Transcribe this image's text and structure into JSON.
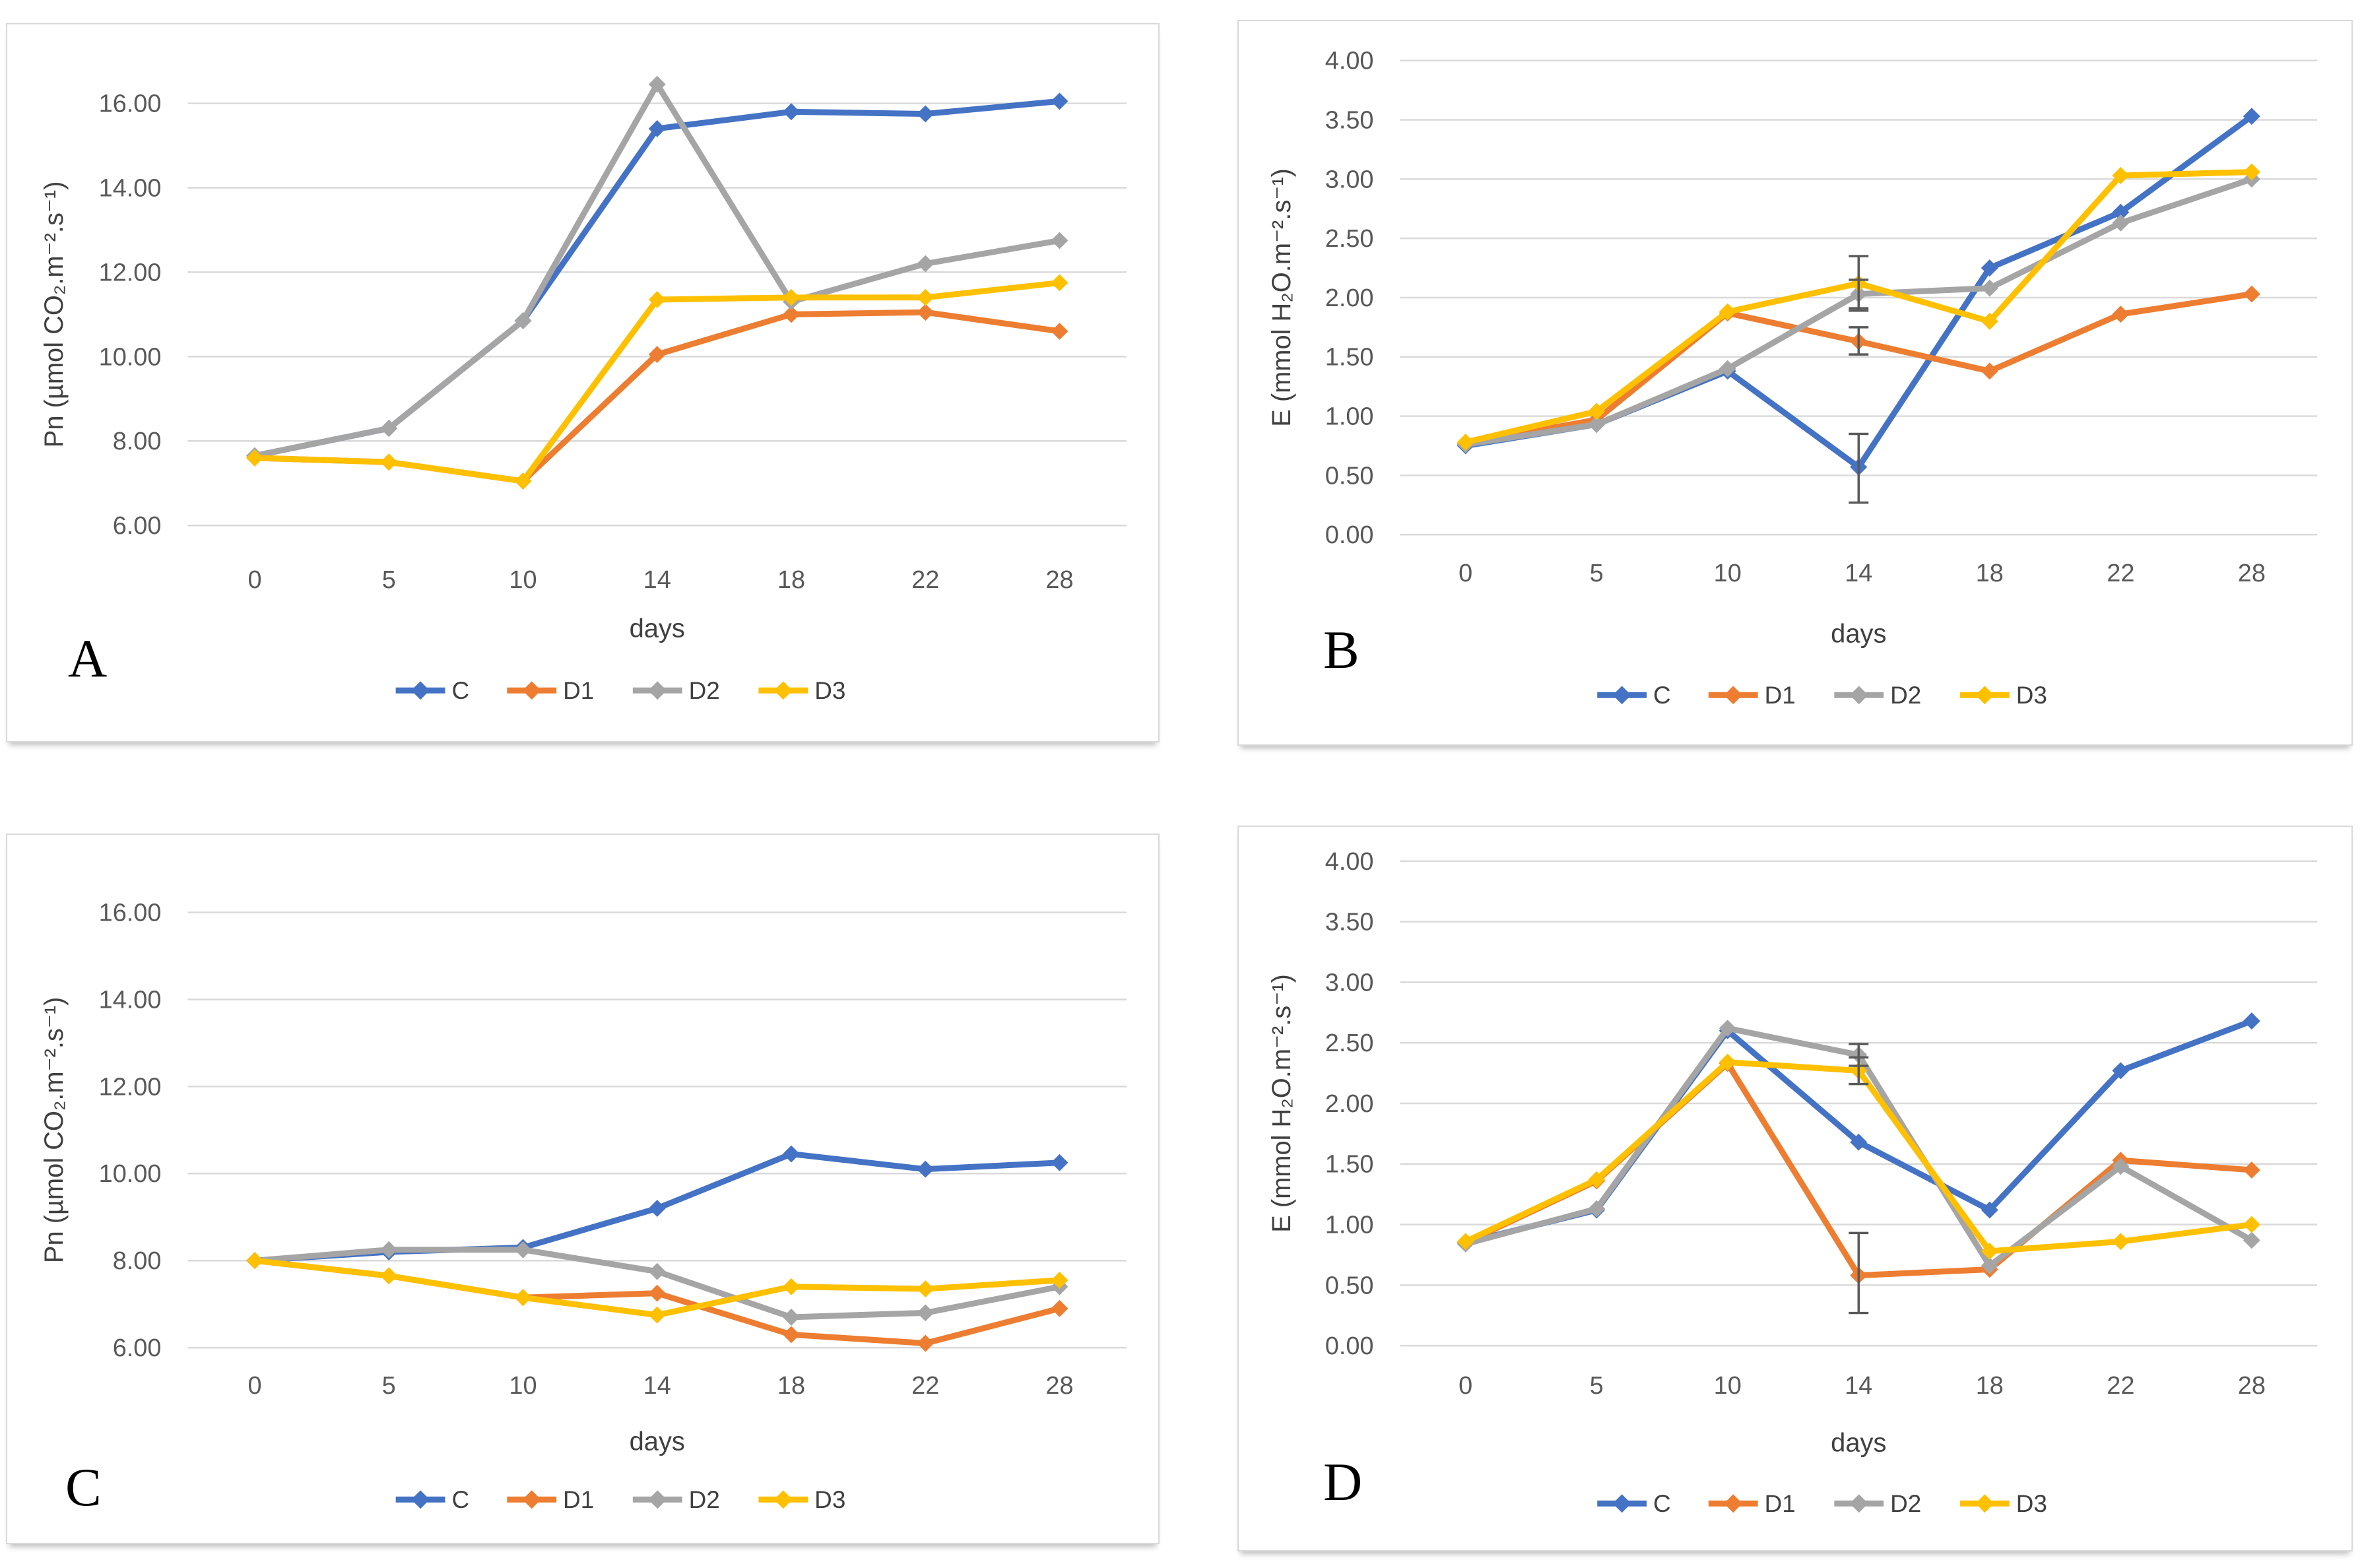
{
  "figure": {
    "legend_labels": [
      "C",
      "D1",
      "D2",
      "D3"
    ],
    "colors": {
      "C": "#4472C4",
      "D1": "#ED7D31",
      "D2": "#A5A5A5",
      "D3": "#FFC000",
      "error_bar": "#595959",
      "gridline": "#D9D9D9",
      "tick_text": "#595959"
    },
    "panels": [
      {
        "letter": "A",
        "chart_data": {
          "type": "line",
          "x_categories": [
            "0",
            "5",
            "10",
            "14",
            "18",
            "22",
            "28"
          ],
          "xlabel": "days",
          "ylabel": "Pn (µmol CO₂.m⁻².s⁻¹)",
          "ylim": [
            6,
            16
          ],
          "ytick_step": 2,
          "ytick_decimals": 2,
          "grid": true,
          "legend_position": "bottom",
          "series": [
            {
              "name": "C",
              "color": "#4472C4",
              "values": [
                7.65,
                8.3,
                10.85,
                15.4,
                15.8,
                15.75,
                16.05
              ],
              "errors": []
            },
            {
              "name": "D1",
              "color": "#ED7D31",
              "values": [
                7.6,
                7.5,
                7.05,
                10.05,
                11.0,
                11.05,
                10.6
              ],
              "errors": []
            },
            {
              "name": "D2",
              "color": "#A5A5A5",
              "values": [
                7.65,
                8.3,
                10.85,
                16.45,
                11.3,
                12.2,
                12.75
              ],
              "errors": []
            },
            {
              "name": "D3",
              "color": "#FFC000",
              "values": [
                7.6,
                7.5,
                7.05,
                11.35,
                11.4,
                11.4,
                11.75
              ],
              "errors": []
            }
          ]
        }
      },
      {
        "letter": "B",
        "chart_data": {
          "type": "line",
          "x_categories": [
            "0",
            "5",
            "10",
            "14",
            "18",
            "22",
            "28"
          ],
          "xlabel": "days",
          "ylabel": "E (mmol H₂O.m⁻².s⁻¹)",
          "ylim": [
            0,
            4
          ],
          "ytick_step": 0.5,
          "ytick_decimals": 2,
          "grid": true,
          "legend_position": "bottom",
          "series": [
            {
              "name": "C",
              "color": "#4472C4",
              "values": [
                0.75,
                0.93,
                1.38,
                0.57,
                2.25,
                2.72,
                3.53
              ],
              "errors": [
                {
                  "xi": 3,
                  "low": 0.27,
                  "high": 0.85
                }
              ]
            },
            {
              "name": "D1",
              "color": "#ED7D31",
              "values": [
                0.77,
                0.97,
                1.87,
                1.63,
                1.38,
                1.86,
                2.03
              ],
              "errors": [
                {
                  "xi": 3,
                  "low": 1.52,
                  "high": 1.75
                }
              ]
            },
            {
              "name": "D2",
              "color": "#A5A5A5",
              "values": [
                0.76,
                0.93,
                1.4,
                2.03,
                2.08,
                2.63,
                3.0
              ],
              "errors": [
                {
                  "xi": 3,
                  "low": 1.91,
                  "high": 2.15
                }
              ]
            },
            {
              "name": "D3",
              "color": "#FFC000",
              "values": [
                0.78,
                1.04,
                1.88,
                2.12,
                1.8,
                3.03,
                3.06
              ],
              "errors": [
                {
                  "xi": 3,
                  "low": 1.89,
                  "high": 2.35
                }
              ]
            }
          ]
        }
      },
      {
        "letter": "C",
        "chart_data": {
          "type": "line",
          "x_categories": [
            "0",
            "5",
            "10",
            "14",
            "18",
            "22",
            "28"
          ],
          "xlabel": "days",
          "ylabel": "Pn (µmol CO₂.m⁻².s⁻¹)",
          "ylim": [
            6,
            16
          ],
          "ytick_step": 2,
          "ytick_decimals": 2,
          "grid": true,
          "legend_position": "bottom",
          "series": [
            {
              "name": "C",
              "color": "#4472C4",
              "values": [
                8.0,
                8.2,
                8.3,
                9.2,
                10.45,
                10.1,
                10.25
              ],
              "errors": []
            },
            {
              "name": "D1",
              "color": "#ED7D31",
              "values": [
                8.0,
                7.65,
                7.15,
                7.25,
                6.3,
                6.1,
                6.9
              ],
              "errors": []
            },
            {
              "name": "D2",
              "color": "#A5A5A5",
              "values": [
                8.0,
                8.25,
                8.25,
                7.75,
                6.7,
                6.8,
                7.4
              ],
              "errors": []
            },
            {
              "name": "D3",
              "color": "#FFC000",
              "values": [
                8.0,
                7.65,
                7.15,
                6.75,
                7.4,
                7.35,
                7.55
              ],
              "errors": []
            }
          ]
        }
      },
      {
        "letter": "D",
        "chart_data": {
          "type": "line",
          "x_categories": [
            "0",
            "5",
            "10",
            "14",
            "18",
            "22",
            "28"
          ],
          "xlabel": "days",
          "ylabel": "E (mmol H₂O.m⁻².s⁻¹)",
          "ylim": [
            0,
            4
          ],
          "ytick_step": 0.5,
          "ytick_decimals": 2,
          "grid": true,
          "legend_position": "bottom",
          "series": [
            {
              "name": "C",
              "color": "#4472C4",
              "values": [
                0.85,
                1.12,
                2.6,
                1.68,
                1.12,
                2.27,
                2.68
              ],
              "errors": []
            },
            {
              "name": "D1",
              "color": "#ED7D31",
              "values": [
                0.85,
                1.36,
                2.33,
                0.58,
                0.63,
                1.53,
                1.45
              ],
              "errors": [
                {
                  "xi": 3,
                  "low": 0.27,
                  "high": 0.93
                }
              ]
            },
            {
              "name": "D2",
              "color": "#A5A5A5",
              "values": [
                0.84,
                1.13,
                2.62,
                2.4,
                0.66,
                1.48,
                0.87
              ],
              "errors": [
                {
                  "xi": 3,
                  "low": 2.31,
                  "high": 2.49
                }
              ]
            },
            {
              "name": "D3",
              "color": "#FFC000",
              "values": [
                0.86,
                1.37,
                2.34,
                2.27,
                0.78,
                0.86,
                1.0
              ],
              "errors": [
                {
                  "xi": 3,
                  "low": 2.16,
                  "high": 2.38
                }
              ]
            }
          ]
        }
      }
    ]
  }
}
